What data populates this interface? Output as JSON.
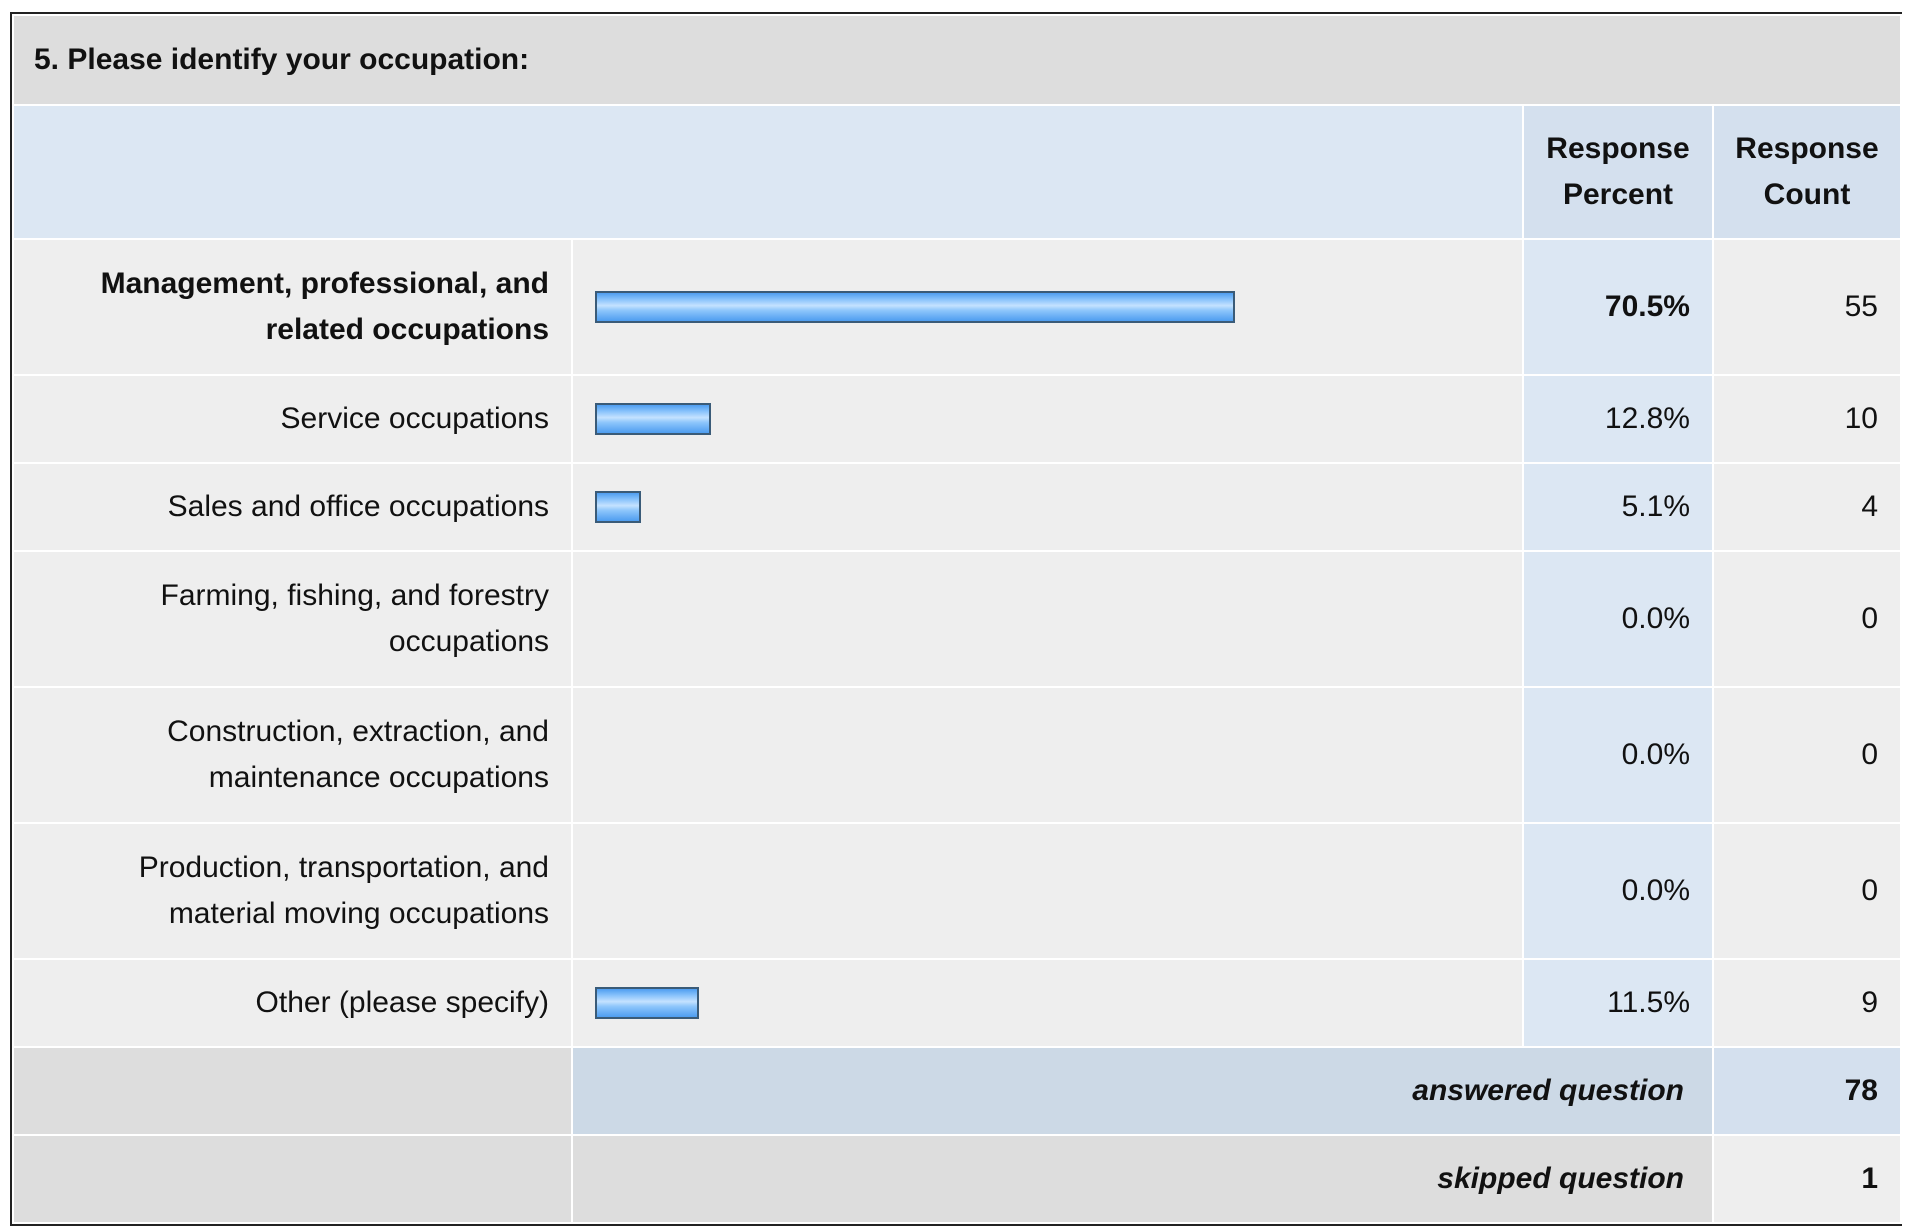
{
  "question": {
    "title": "5. Please identify your occupation:"
  },
  "headers": {
    "percent": "Response Percent",
    "count": "Response Count"
  },
  "chart_data": {
    "type": "bar",
    "orientation": "horizontal",
    "categories": [
      "Management, professional, and related occupations",
      "Service occupations",
      "Sales and office occupations",
      "Farming, fishing, and forestry occupations",
      "Construction, extraction, and maintenance occupations",
      "Production, transportation, and material moving occupations",
      "Other (please specify)"
    ],
    "percent_labels": [
      "70.5%",
      "12.8%",
      "5.1%",
      "0.0%",
      "0.0%",
      "0.0%",
      "11.5%"
    ],
    "values": [
      70.5,
      12.8,
      5.1,
      0.0,
      0.0,
      0.0,
      11.5
    ],
    "counts": [
      55,
      10,
      4,
      0,
      0,
      0,
      9
    ],
    "highlighted_index": 0,
    "bar_color": "#7fbaf5",
    "bar_border_color": "#3a5b78"
  },
  "summary": {
    "answered_label": "answered question",
    "answered_value": "78",
    "skipped_label": "skipped question",
    "skipped_value": "1"
  },
  "colors": {
    "header_bg": "#dce7f3",
    "title_bg": "#dddddd",
    "row_bg": "#eeeeee",
    "percent_bg": "#dce7f3"
  }
}
